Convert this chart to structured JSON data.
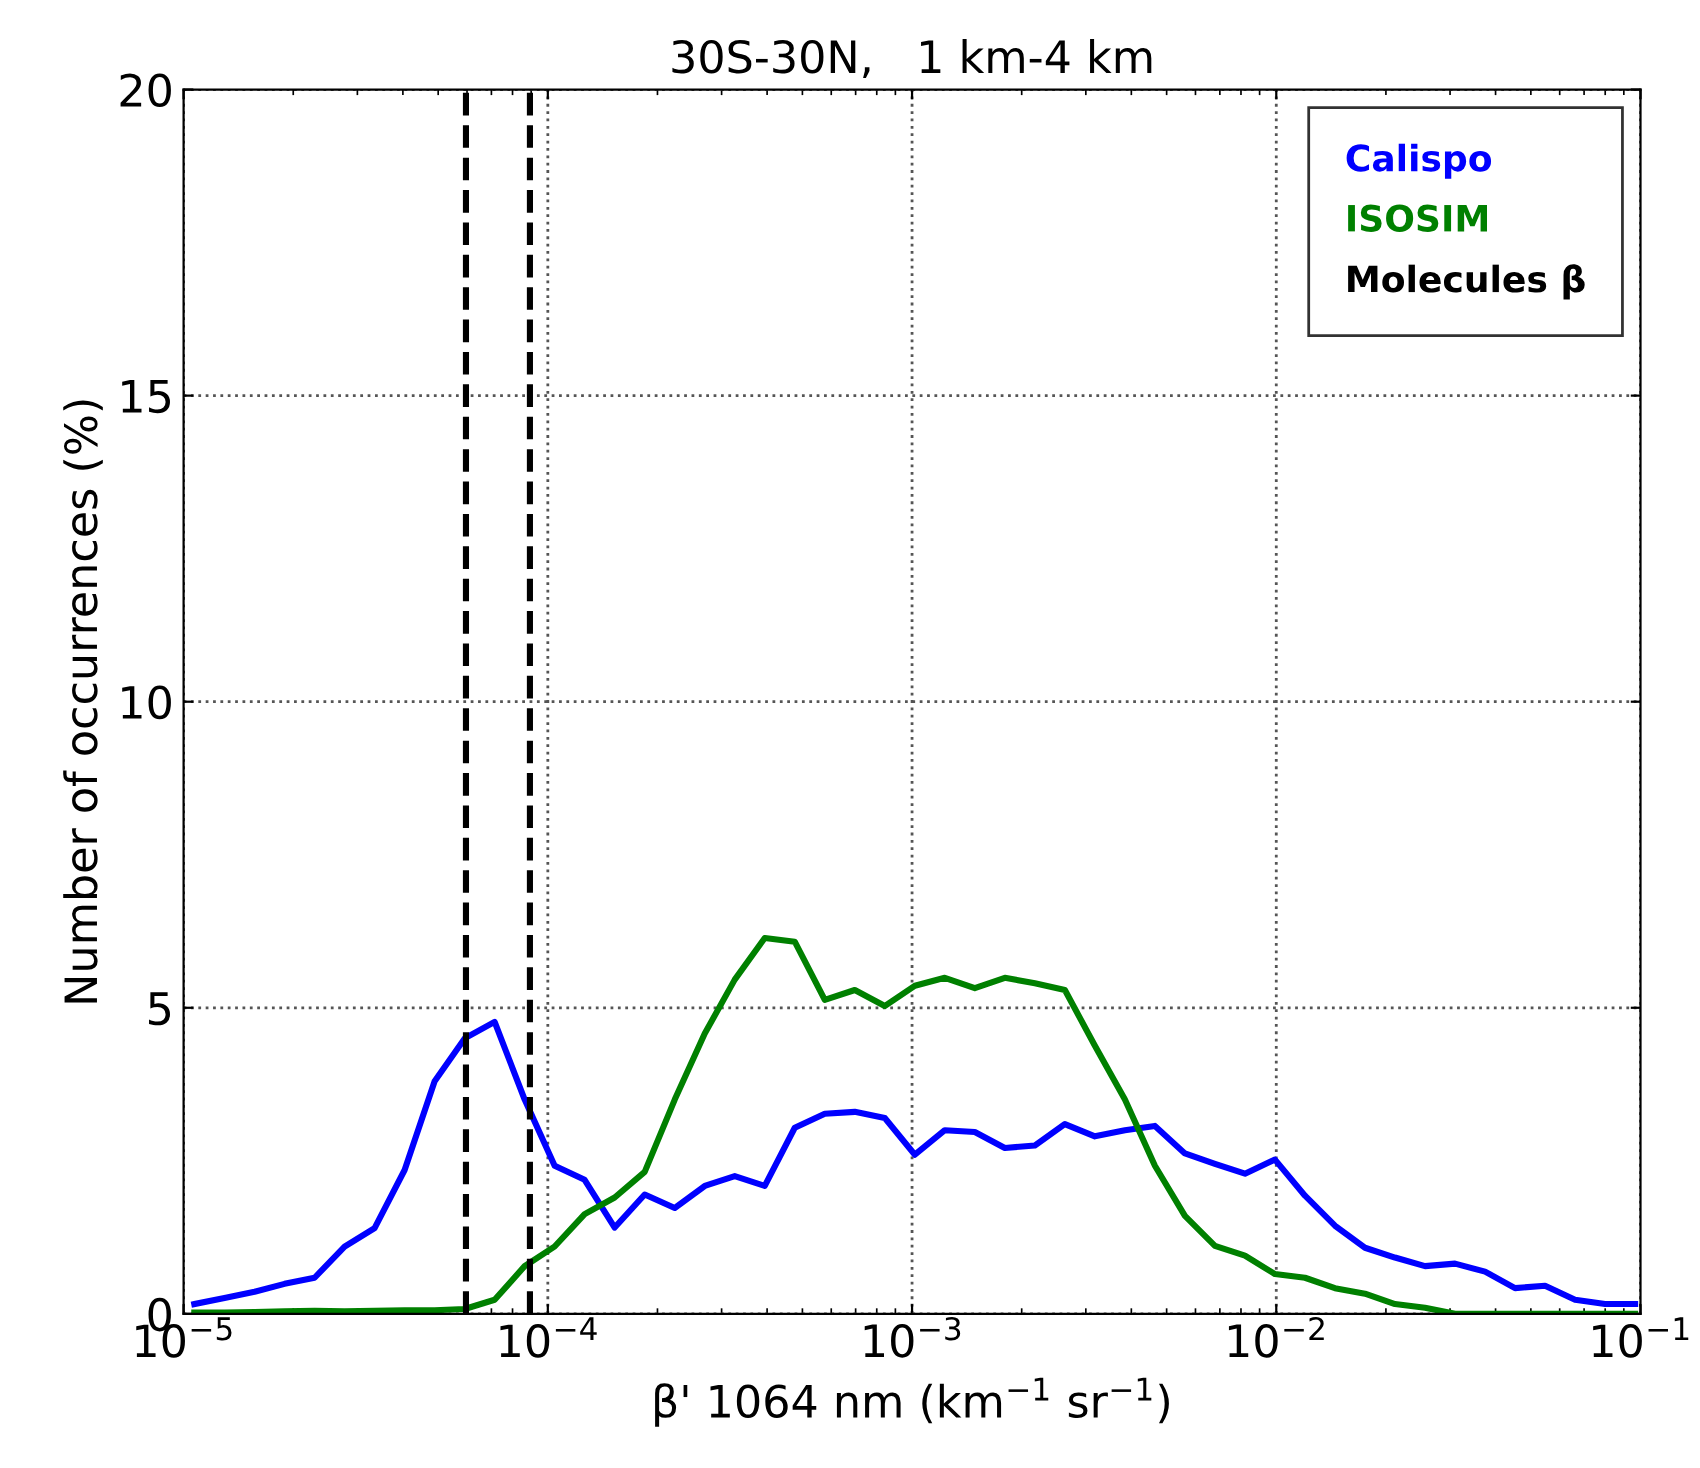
{
  "chart_data": {
    "type": "line",
    "title": "30S-30N,   1 km-4 km",
    "xlabel": "β' 1064 nm (km$^{−1}$ sr$^{−1}$)",
    "ylabel": "Number of occurrences (%)",
    "x": [
      1.07e-05,
      1.295e-05,
      1.566e-05,
      1.893e-05,
      2.289e-05,
      2.767e-05,
      3.345e-05,
      4.044e-05,
      4.889e-05,
      5.911e-05,
      7.145e-05,
      8.638e-05,
      0.0001044,
      0.0001262,
      0.0001526,
      0.0001845,
      0.0002231,
      0.0002697,
      0.000326,
      0.0003941,
      0.0004764,
      0.000576,
      0.0006963,
      0.0008418,
      0.001018,
      0.00123,
      0.001487,
      0.001798,
      0.002174,
      0.002628,
      0.003177,
      0.003841,
      0.004643,
      0.005613,
      0.006786,
      0.008204,
      0.009917,
      0.01199,
      0.01449,
      0.01752,
      0.02118,
      0.02561,
      0.03096,
      0.03743,
      0.04524,
      0.0547,
      0.06612,
      0.07993,
      0.09665
    ],
    "series": [
      {
        "name": "Calispo",
        "color": "#0000ff",
        "values": [
          0.16,
          0.26,
          0.36,
          0.49,
          0.59,
          1.1,
          1.4,
          2.35,
          3.8,
          4.5,
          4.77,
          3.5,
          2.42,
          2.19,
          1.41,
          1.95,
          1.73,
          2.09,
          2.25,
          2.09,
          3.04,
          3.27,
          3.3,
          3.2,
          2.6,
          3.0,
          2.97,
          2.71,
          2.75,
          3.1,
          2.9,
          3.0,
          3.07,
          2.62,
          2.45,
          2.29,
          2.52,
          1.93,
          1.44,
          1.08,
          0.92,
          0.78,
          0.82,
          0.69,
          0.42,
          0.46,
          0.23,
          0.16,
          0.16
        ]
      },
      {
        "name": "ISOSIM",
        "color": "#008000",
        "values": [
          0.02,
          0.02,
          0.03,
          0.04,
          0.05,
          0.04,
          0.05,
          0.06,
          0.06,
          0.08,
          0.23,
          0.78,
          1.1,
          1.63,
          1.9,
          2.32,
          3.5,
          4.58,
          5.46,
          6.14,
          6.08,
          5.13,
          5.29,
          5.03,
          5.36,
          5.49,
          5.32,
          5.49,
          5.4,
          5.29,
          4.38,
          3.5,
          2.42,
          1.6,
          1.11,
          0.95,
          0.65,
          0.59,
          0.42,
          0.33,
          0.16,
          0.1,
          0,
          0,
          0,
          0,
          0,
          0,
          0
        ]
      }
    ],
    "ref_lines": [
      {
        "axis": "x",
        "value": 5.96e-05,
        "label": "Molecules β",
        "color": "#000000",
        "line_style": "dashed"
      },
      {
        "axis": "x",
        "value": 8.93e-05,
        "label": null,
        "color": "#000000",
        "line_style": "dashed"
      }
    ],
    "log": "x",
    "xlim": [
      1e-05,
      0.1
    ],
    "ylim": [
      0,
      20
    ],
    "xticks": [
      {
        "value": 1e-05,
        "label": "10$^{−5}$"
      },
      {
        "value": 0.0001,
        "label": "10$^{−4}$"
      },
      {
        "value": 0.001,
        "label": "10$^{−3}$"
      },
      {
        "value": 0.01,
        "label": "10$^{−2}$"
      },
      {
        "value": 0.1,
        "label": "10$^{−1}$"
      }
    ],
    "yticks": [
      0,
      5,
      10,
      15,
      20
    ],
    "grid": true,
    "legend": "top right",
    "line_style": "solid",
    "marker": "none"
  }
}
